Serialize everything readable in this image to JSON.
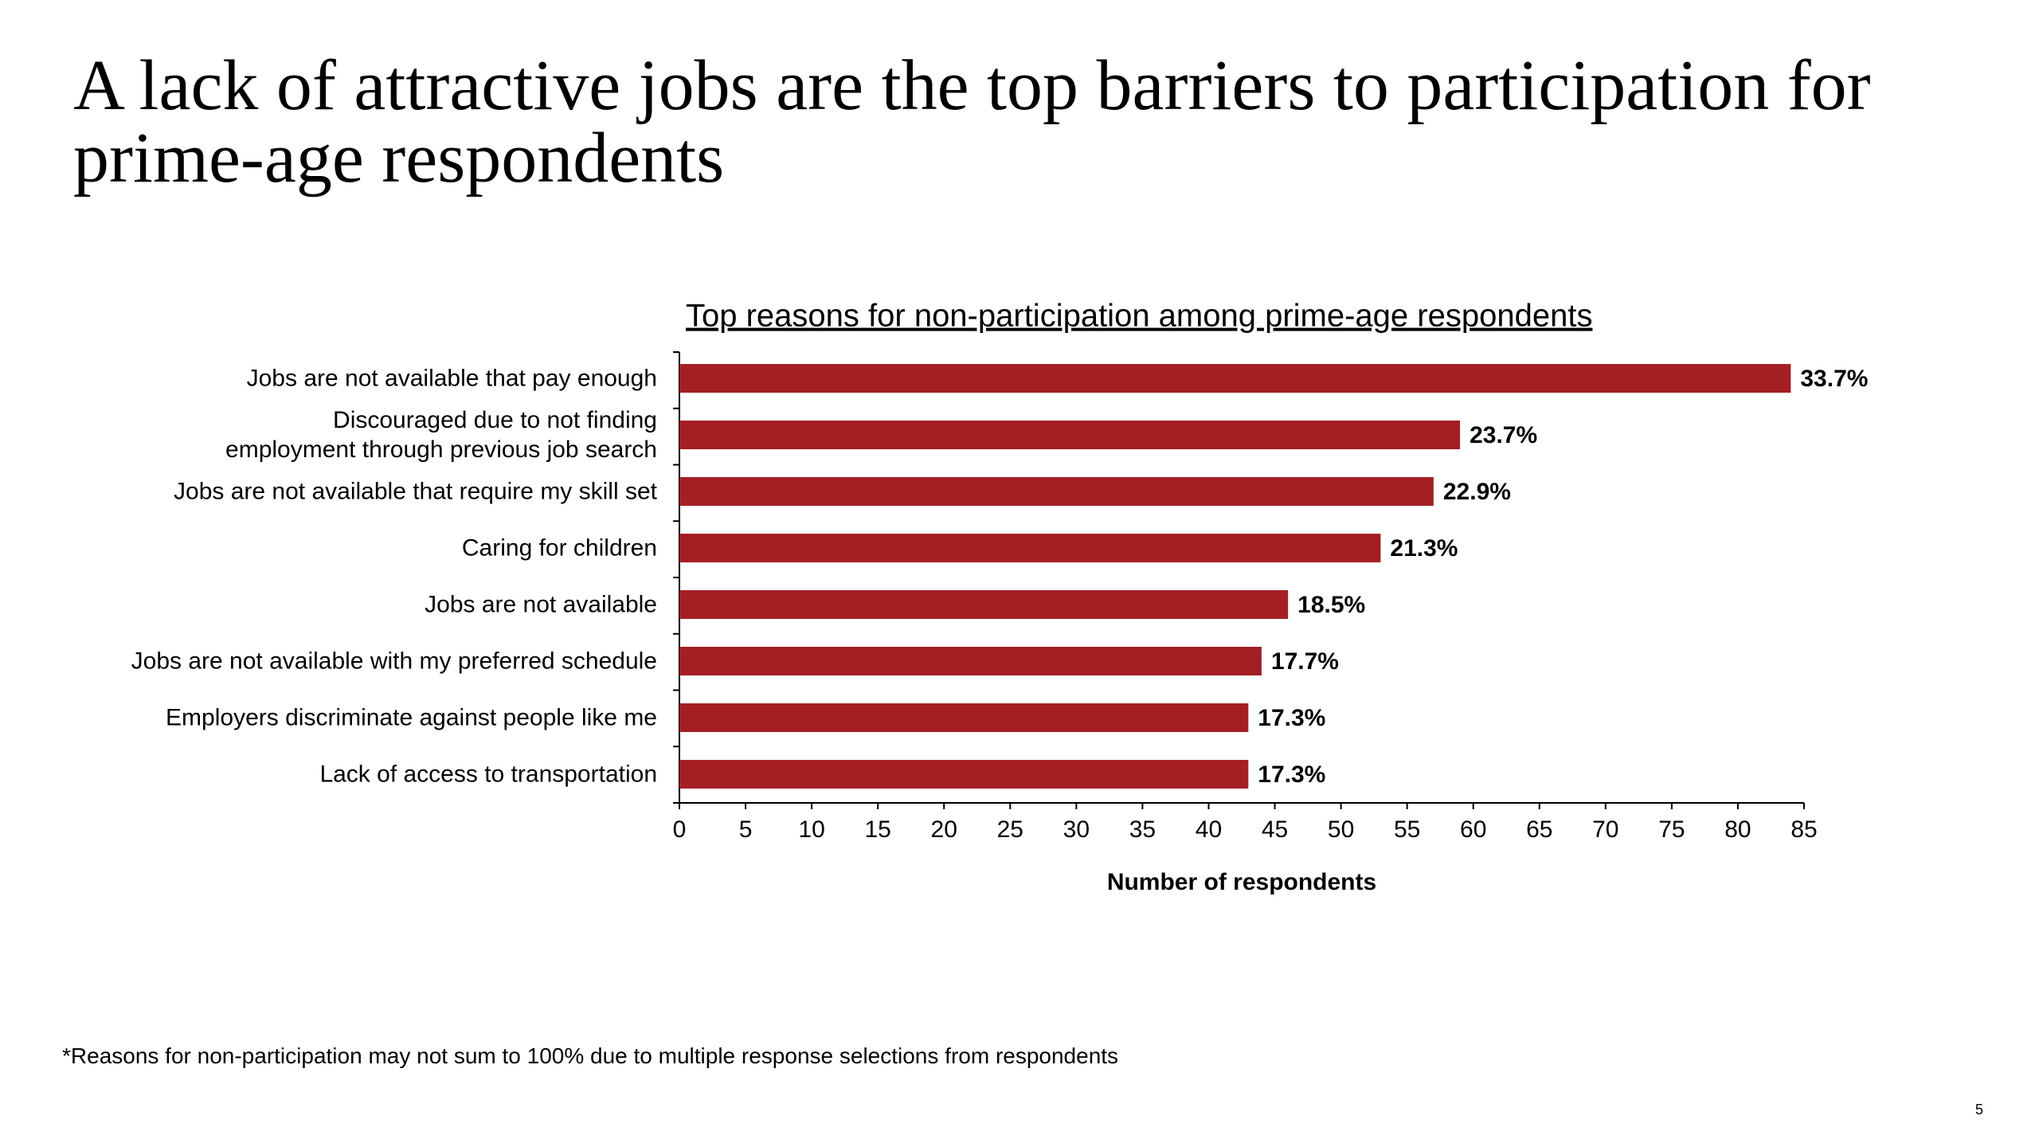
{
  "headline": "A lack of attractive jobs are the top barriers to participation for prime-age respondents",
  "footnote": "*Reasons for non-participation may not sum to 100% due to multiple response selections from respondents",
  "page_number": "5",
  "chart_data": {
    "type": "hbar",
    "title": "Top reasons for non-participation among prime-age respondents",
    "x_label": "Number of respondents",
    "categories": [
      "Jobs are not available that pay enough",
      "Discouraged due to not finding\nemployment through previous job search",
      "Jobs are not available that require my skill set",
      "Caring for children",
      "Jobs are not available",
      "Jobs are not available with my preferred schedule",
      "Employers discriminate against people like me",
      "Lack of access to transportation"
    ],
    "values": [
      84,
      59,
      57,
      53,
      46,
      44,
      43,
      43
    ],
    "value_labels": [
      "33.7%",
      "23.7%",
      "22.9%",
      "21.3%",
      "18.5%",
      "17.7%",
      "17.3%",
      "17.3%"
    ],
    "color": "#a31f24",
    "xlim": [
      0,
      85
    ],
    "xticks": [
      0,
      5,
      10,
      15,
      20,
      25,
      30,
      35,
      40,
      45,
      50,
      55,
      60,
      65,
      70,
      75,
      80,
      85
    ],
    "grid": false
  }
}
